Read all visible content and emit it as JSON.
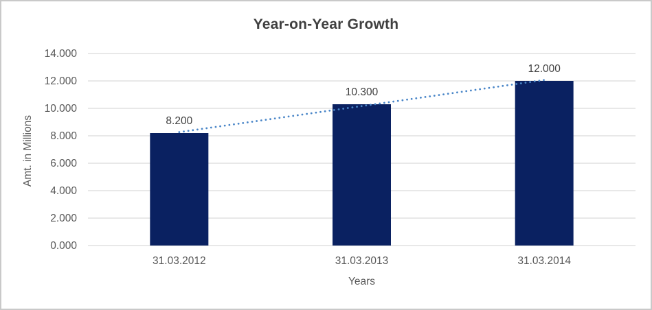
{
  "chart_data": {
    "type": "bar",
    "title": "Year-on-Year Growth",
    "xlabel": "Years",
    "ylabel": "Amt. in Millions",
    "categories": [
      "31.03.2012",
      "31.03.2013",
      "31.03.2014"
    ],
    "series": [
      {
        "values": [
          8.2,
          10.3,
          12.0
        ],
        "value_labels": [
          "8.200",
          "10.300",
          "12.000"
        ]
      }
    ],
    "ylim": [
      0,
      14
    ],
    "ytick_step": 2,
    "ytick_labels": [
      "0.000",
      "2.000",
      "4.000",
      "6.000",
      "8.000",
      "10.000",
      "12.000",
      "14.000"
    ],
    "grid": true,
    "legend": "none",
    "trendline": {
      "type": "linear",
      "style": "dotted",
      "color": "#4a86c8"
    },
    "colors": {
      "bar": "#0a2161",
      "grid": "#d9d9d9",
      "axis_text": "#595959",
      "data_label": "#404040",
      "title": "#3f3f3f",
      "border": "#c9c9c9",
      "background": "#ffffff"
    }
  }
}
